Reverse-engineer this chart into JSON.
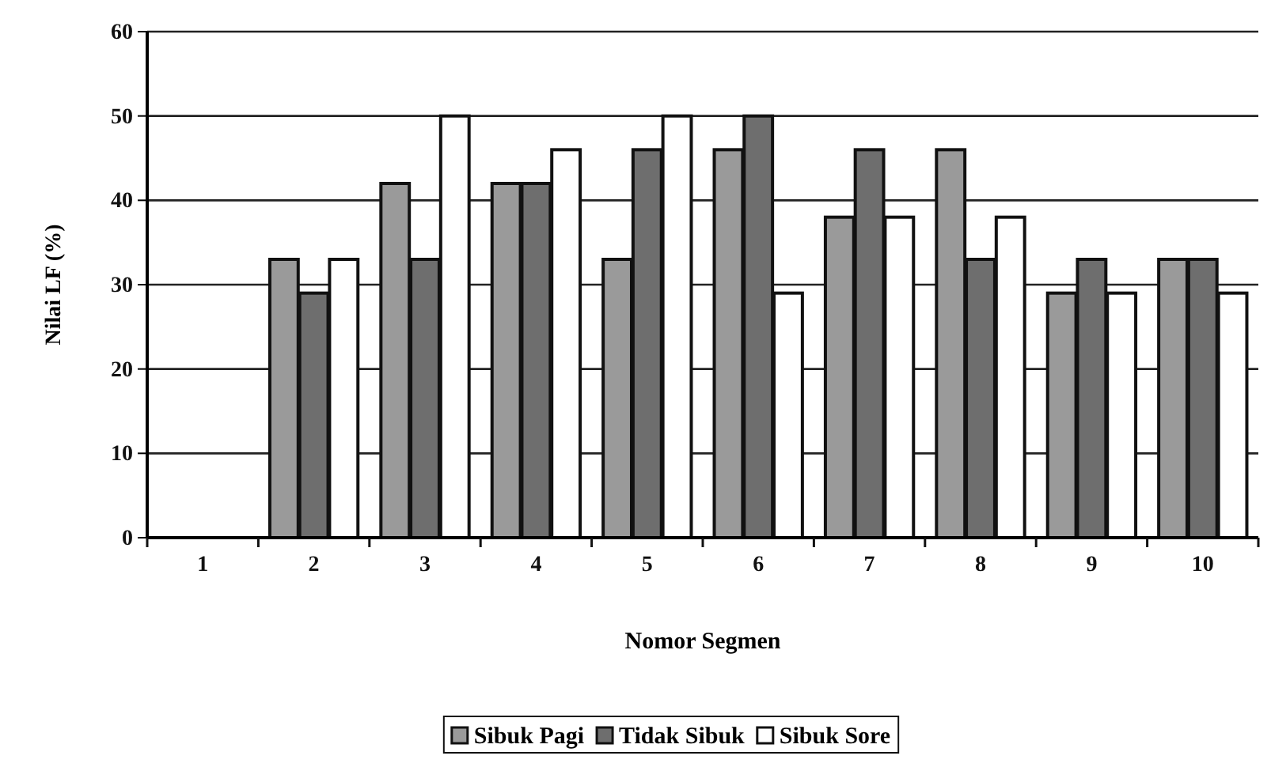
{
  "chart_data": {
    "type": "bar",
    "xlabel": "Nomor Segmen",
    "ylabel": "Nilai LF (%)",
    "categories": [
      "1",
      "2",
      "3",
      "4",
      "5",
      "6",
      "7",
      "8",
      "9",
      "10"
    ],
    "series": [
      {
        "name": "Sibuk Pagi",
        "color": "#9a9a9a",
        "values": [
          null,
          33,
          42,
          42,
          33,
          46,
          38,
          46,
          29,
          33
        ]
      },
      {
        "name": "Tidak Sibuk",
        "color": "#6e6e6e",
        "values": [
          null,
          29,
          33,
          42,
          46,
          50,
          46,
          33,
          33,
          33
        ]
      },
      {
        "name": "Sibuk Sore",
        "color": "#ffffff",
        "values": [
          null,
          33,
          50,
          46,
          50,
          29,
          38,
          38,
          29,
          29
        ]
      }
    ],
    "ylim": [
      0,
      60
    ],
    "yticks": [
      0,
      10,
      20,
      30,
      40,
      50,
      60
    ],
    "grid": "y",
    "legend": "bottom"
  }
}
